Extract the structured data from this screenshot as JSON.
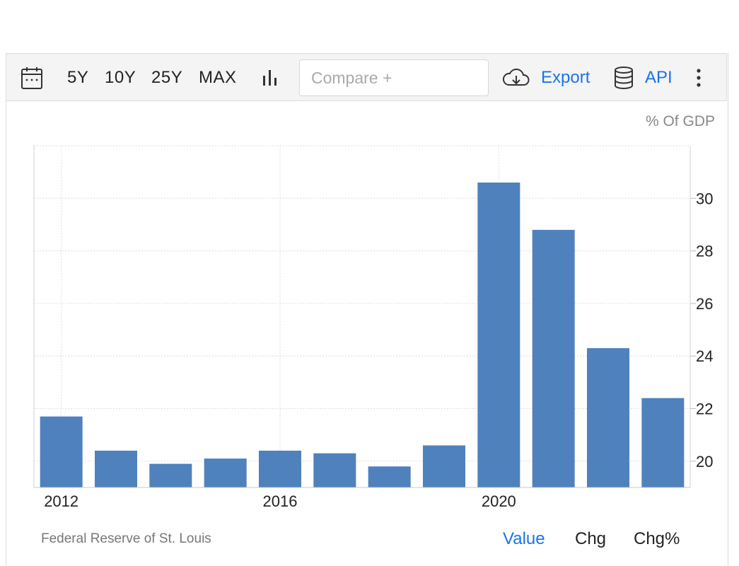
{
  "toolbar": {
    "calendar_icon": "calendar-icon",
    "ranges": [
      "5Y",
      "10Y",
      "25Y",
      "MAX"
    ],
    "chart_type_icon": "bar-chart-icon",
    "compare_placeholder": "Compare +",
    "export_icon": "cloud-download-icon",
    "export_label": "Export",
    "api_icon": "database-icon",
    "api_label": "API",
    "more_icon": "vertical-ellipsis-icon"
  },
  "colors": {
    "bar": "#4f81bd",
    "link": "#1a73e8",
    "grid": "#dedede"
  },
  "chart_data": {
    "type": "bar",
    "unit_label": "% Of GDP",
    "x": [
      2012,
      2013,
      2014,
      2015,
      2016,
      2017,
      2018,
      2019,
      2020,
      2021,
      2022,
      2023
    ],
    "x_tick_labels": [
      "2012",
      "2016",
      "2020"
    ],
    "values": [
      21.7,
      20.4,
      19.9,
      20.1,
      20.4,
      20.3,
      19.8,
      20.6,
      30.6,
      28.8,
      24.3,
      22.4
    ],
    "ylim": [
      19,
      32
    ],
    "y_ticks": [
      20,
      22,
      24,
      26,
      28,
      30
    ],
    "y_axis_side": "right",
    "grid": true
  },
  "footer": {
    "source": "Federal Reserve of St. Louis",
    "tabs": [
      "Value",
      "Chg",
      "Chg%"
    ]
  }
}
